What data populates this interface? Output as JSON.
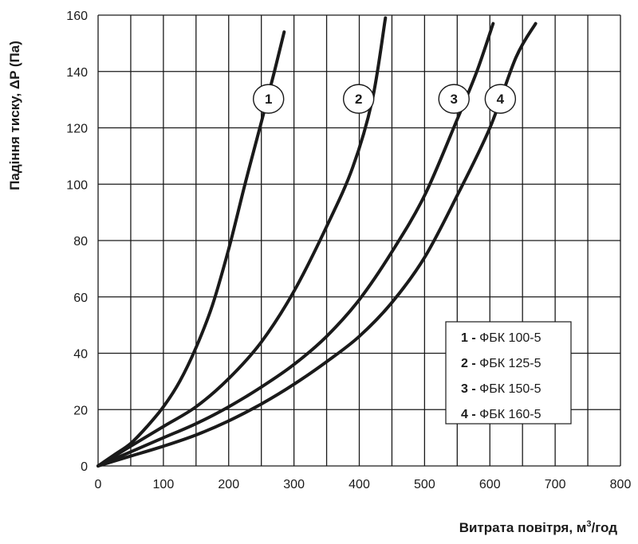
{
  "chart_data": {
    "type": "line",
    "title": "",
    "xlabel": "Витрата повітря, м³/год",
    "xlabel_main": "Витрата повітря, м",
    "xlabel_sup": "3",
    "xlabel_tail": "/год",
    "ylabel": "Падіння тиску, ΔP (Па)",
    "xlim": [
      0,
      800
    ],
    "ylim": [
      0,
      160
    ],
    "x_ticks": [
      0,
      100,
      200,
      300,
      400,
      500,
      600,
      700,
      800
    ],
    "y_ticks": [
      0,
      20,
      40,
      60,
      80,
      100,
      120,
      140,
      160
    ],
    "x_tick_labels": [
      "0",
      "100",
      "200",
      "300",
      "400",
      "500",
      "600",
      "700",
      "800"
    ],
    "y_tick_labels": [
      "0",
      "20",
      "40",
      "60",
      "80",
      "100",
      "120",
      "140",
      "160"
    ],
    "x_grid_step": 50,
    "y_grid_step": 20,
    "grid": true,
    "legend_position": "bottom-right",
    "series": [
      {
        "name": "ФБК 100-5",
        "marker": "1",
        "points": [
          [
            0,
            0
          ],
          [
            25,
            4
          ],
          [
            50,
            8
          ],
          [
            75,
            14
          ],
          [
            100,
            21
          ],
          [
            125,
            30
          ],
          [
            150,
            42
          ],
          [
            175,
            57
          ],
          [
            200,
            77
          ],
          [
            225,
            100
          ],
          [
            250,
            122
          ],
          [
            270,
            140
          ],
          [
            285,
            154
          ]
        ]
      },
      {
        "name": "ФБК 125-5",
        "marker": "2",
        "points": [
          [
            0,
            0
          ],
          [
            50,
            7
          ],
          [
            100,
            14
          ],
          [
            150,
            21
          ],
          [
            200,
            31
          ],
          [
            250,
            44
          ],
          [
            300,
            62
          ],
          [
            350,
            85
          ],
          [
            390,
            106
          ],
          [
            420,
            130
          ],
          [
            440,
            159
          ]
        ]
      },
      {
        "name": "ФБК 150-5",
        "marker": "3",
        "points": [
          [
            0,
            0
          ],
          [
            50,
            5
          ],
          [
            100,
            10
          ],
          [
            150,
            15
          ],
          [
            200,
            21
          ],
          [
            250,
            28
          ],
          [
            300,
            36
          ],
          [
            350,
            46
          ],
          [
            400,
            59
          ],
          [
            450,
            76
          ],
          [
            500,
            96
          ],
          [
            550,
            123
          ],
          [
            580,
            140
          ],
          [
            605,
            157
          ]
        ]
      },
      {
        "name": "ФБК 160-5",
        "marker": "4",
        "points": [
          [
            0,
            0
          ],
          [
            50,
            3.5
          ],
          [
            100,
            7
          ],
          [
            150,
            11
          ],
          [
            200,
            16
          ],
          [
            250,
            22
          ],
          [
            300,
            29
          ],
          [
            350,
            37
          ],
          [
            400,
            46
          ],
          [
            450,
            58
          ],
          [
            500,
            74
          ],
          [
            550,
            96
          ],
          [
            600,
            120
          ],
          [
            640,
            145
          ],
          [
            670,
            157
          ]
        ]
      }
    ],
    "markers": [
      {
        "label": "1",
        "x": 261,
        "y": 130
      },
      {
        "label": "2",
        "x": 399,
        "y": 130
      },
      {
        "label": "3",
        "x": 545,
        "y": 130
      },
      {
        "label": "4",
        "x": 616,
        "y": 130
      }
    ],
    "legend": [
      {
        "num": "1 -",
        "name": "ФБК 100-5"
      },
      {
        "num": "2 -",
        "name": "ФБК 125-5"
      },
      {
        "num": "3 -",
        "name": "ФБК 150-5"
      },
      {
        "num": "4 -",
        "name": "ФБК 160-5"
      }
    ]
  }
}
